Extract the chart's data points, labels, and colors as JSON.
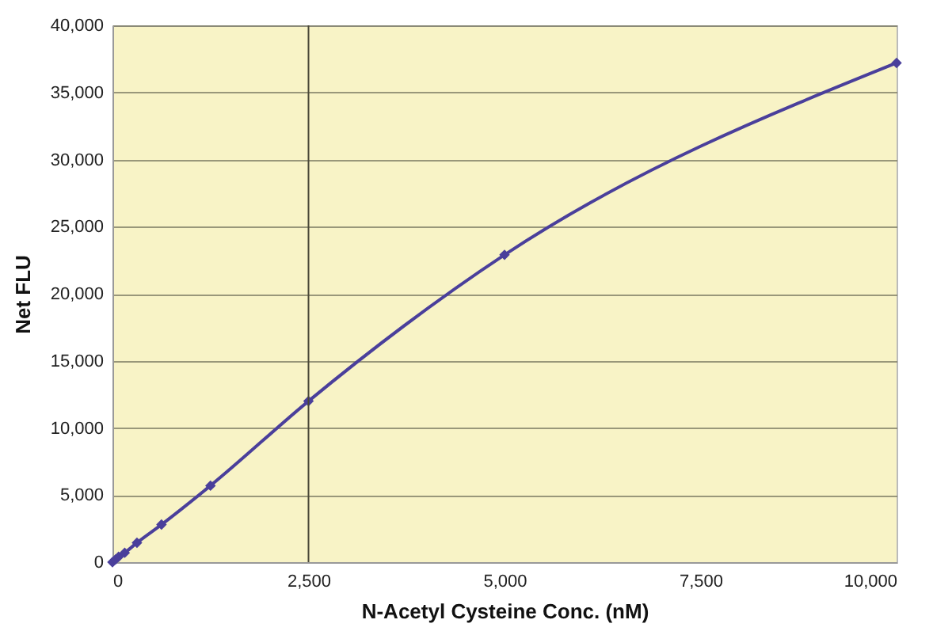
{
  "chart_data": {
    "type": "line",
    "xlabel": "N-Acetyl Cysteine Conc. (nM)",
    "ylabel": "Net FLU",
    "x": [
      0,
      39,
      78,
      156,
      312.5,
      625,
      1250,
      2500,
      5000,
      10000
    ],
    "series": [
      {
        "color": "#4a3f9b",
        "values": [
          0,
          200,
          400,
          700,
          1450,
          2800,
          5700,
          12000,
          22900,
          37200
        ]
      }
    ],
    "xlim": [
      0,
      10000
    ],
    "xticks": [
      {
        "value": 0,
        "label": "0"
      },
      {
        "value": 2500,
        "label": "2,500"
      },
      {
        "value": 5000,
        "label": "5,000"
      },
      {
        "value": 7500,
        "label": "7,500"
      },
      {
        "value": 10000,
        "label": "10,000"
      }
    ],
    "ylim": [
      0,
      40000
    ],
    "yticks": [
      {
        "value": 0,
        "label": "0"
      },
      {
        "value": 5000,
        "label": "5,000"
      },
      {
        "value": 10000,
        "label": "10,000"
      },
      {
        "value": 15000,
        "label": "15,000"
      },
      {
        "value": 20000,
        "label": "20,000"
      },
      {
        "value": 25000,
        "label": "25,000"
      },
      {
        "value": 30000,
        "label": "30,000"
      },
      {
        "value": 35000,
        "label": "35,000"
      },
      {
        "value": 40000,
        "label": "40,000"
      }
    ],
    "grid": "y",
    "marker": "diamond",
    "line_style": "solid",
    "ref_lines": [
      {
        "axis": "x",
        "value": 2500
      }
    ]
  }
}
